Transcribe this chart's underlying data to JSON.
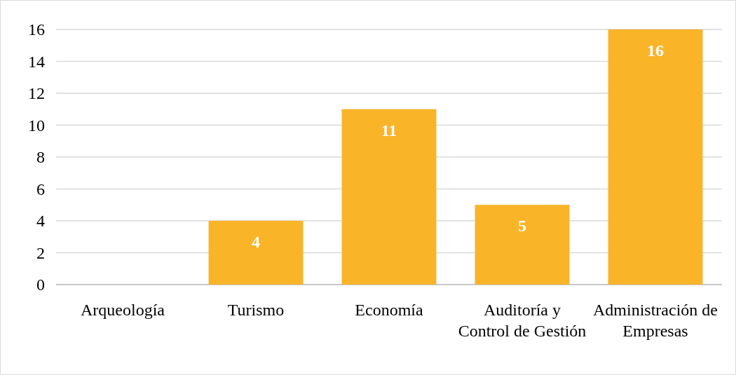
{
  "chart_data": {
    "type": "bar",
    "categories": [
      "Arqueología",
      "Turismo",
      "Economía",
      "Auditoría y Control de Gestión",
      "Administración de Empresas"
    ],
    "values": [
      0,
      4,
      11,
      5,
      16
    ],
    "color": "#f9b428",
    "value_labels": [
      null,
      "4",
      "11",
      "5",
      "16"
    ],
    "ylim": [
      0,
      16
    ],
    "yticks": [
      0,
      2,
      4,
      6,
      8,
      10,
      12,
      14,
      16
    ],
    "grid": "y"
  }
}
